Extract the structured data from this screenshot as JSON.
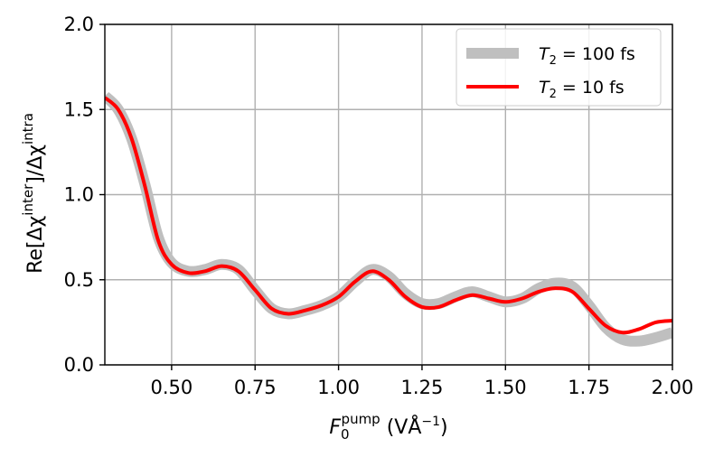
{
  "chart_data": {
    "type": "line",
    "xlabel": {
      "base": "F",
      "sub": "0",
      "sup": "pump",
      "unit_open": " (VÅ",
      "unit_sup": "−1",
      "unit_close": ")"
    },
    "ylabel": {
      "p1": "Re[Δχ",
      "sup1": "inter",
      "p2": "]/Δχ",
      "sup2": "intra"
    },
    "xlim": [
      0.3,
      2.0
    ],
    "ylim": [
      0.0,
      2.0
    ],
    "xticks": [
      "0.50",
      "0.75",
      "1.00",
      "1.25",
      "1.50",
      "1.75",
      "2.00"
    ],
    "xtick_values": [
      0.5,
      0.75,
      1.0,
      1.25,
      1.5,
      1.75,
      2.0
    ],
    "yticks": [
      "0.0",
      "0.5",
      "1.0",
      "1.5",
      "2.0"
    ],
    "ytick_values": [
      0.0,
      0.5,
      1.0,
      1.5,
      2.0
    ],
    "grid": true,
    "legend_position": "top-right",
    "series": [
      {
        "name": "100 fs",
        "legend_var": "T",
        "legend_sub": "2",
        "color": "#bfbfbf",
        "width": 12,
        "points": [
          [
            0.3,
            1.58
          ],
          [
            0.34,
            1.5
          ],
          [
            0.38,
            1.33
          ],
          [
            0.42,
            1.06
          ],
          [
            0.46,
            0.75
          ],
          [
            0.5,
            0.6
          ],
          [
            0.55,
            0.55
          ],
          [
            0.6,
            0.56
          ],
          [
            0.65,
            0.59
          ],
          [
            0.7,
            0.56
          ],
          [
            0.75,
            0.44
          ],
          [
            0.8,
            0.33
          ],
          [
            0.85,
            0.3
          ],
          [
            0.9,
            0.32
          ],
          [
            0.95,
            0.35
          ],
          [
            1.0,
            0.4
          ],
          [
            1.05,
            0.49
          ],
          [
            1.1,
            0.56
          ],
          [
            1.15,
            0.52
          ],
          [
            1.2,
            0.42
          ],
          [
            1.25,
            0.36
          ],
          [
            1.3,
            0.36
          ],
          [
            1.35,
            0.4
          ],
          [
            1.4,
            0.43
          ],
          [
            1.45,
            0.4
          ],
          [
            1.5,
            0.37
          ],
          [
            1.55,
            0.39
          ],
          [
            1.6,
            0.45
          ],
          [
            1.65,
            0.48
          ],
          [
            1.7,
            0.46
          ],
          [
            1.75,
            0.35
          ],
          [
            1.8,
            0.22
          ],
          [
            1.85,
            0.15
          ],
          [
            1.9,
            0.14
          ],
          [
            1.95,
            0.16
          ],
          [
            2.0,
            0.19
          ]
        ]
      },
      {
        "name": "10 fs",
        "legend_var": "T",
        "legend_sub": "2",
        "color": "#ff0000",
        "width": 4,
        "points": [
          [
            0.3,
            1.57
          ],
          [
            0.34,
            1.5
          ],
          [
            0.38,
            1.33
          ],
          [
            0.42,
            1.05
          ],
          [
            0.46,
            0.73
          ],
          [
            0.5,
            0.59
          ],
          [
            0.55,
            0.54
          ],
          [
            0.6,
            0.55
          ],
          [
            0.65,
            0.58
          ],
          [
            0.7,
            0.55
          ],
          [
            0.75,
            0.44
          ],
          [
            0.8,
            0.33
          ],
          [
            0.85,
            0.3
          ],
          [
            0.9,
            0.32
          ],
          [
            0.95,
            0.35
          ],
          [
            1.0,
            0.4
          ],
          [
            1.05,
            0.49
          ],
          [
            1.1,
            0.55
          ],
          [
            1.15,
            0.5
          ],
          [
            1.2,
            0.4
          ],
          [
            1.25,
            0.34
          ],
          [
            1.3,
            0.34
          ],
          [
            1.35,
            0.38
          ],
          [
            1.4,
            0.41
          ],
          [
            1.45,
            0.39
          ],
          [
            1.5,
            0.37
          ],
          [
            1.55,
            0.39
          ],
          [
            1.6,
            0.43
          ],
          [
            1.65,
            0.45
          ],
          [
            1.7,
            0.43
          ],
          [
            1.75,
            0.33
          ],
          [
            1.8,
            0.23
          ],
          [
            1.85,
            0.19
          ],
          [
            1.9,
            0.21
          ],
          [
            1.95,
            0.25
          ],
          [
            2.0,
            0.26
          ]
        ]
      }
    ]
  }
}
